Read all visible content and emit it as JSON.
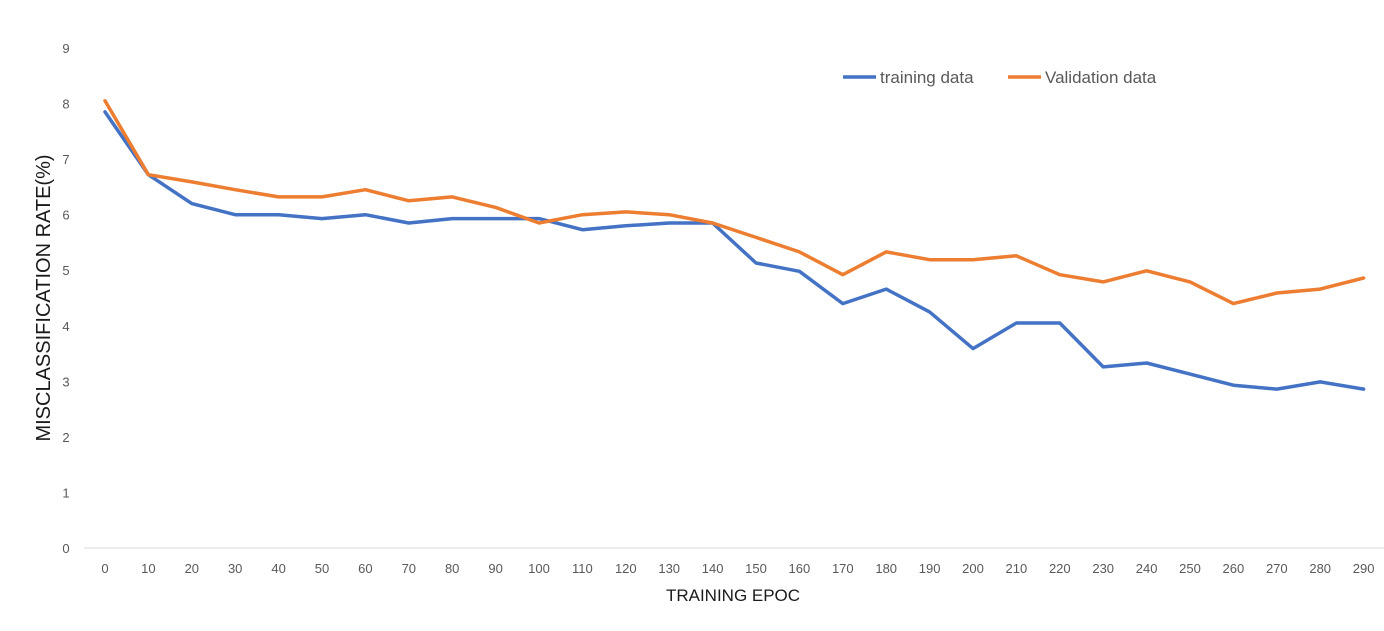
{
  "chart_data": {
    "type": "line",
    "title": "",
    "xlabel": "TRAINING EPOC",
    "ylabel": "MISCLASSIFICATION RATE(%)",
    "ylim": [
      0,
      9
    ],
    "y_ticks": [
      "0",
      "1",
      "2",
      "3",
      "4",
      "5",
      "6",
      "7",
      "8",
      "9"
    ],
    "grid": false,
    "legend_position": "top-right",
    "categories": [
      "0",
      "10",
      "20",
      "30",
      "40",
      "50",
      "60",
      "70",
      "80",
      "90",
      "100",
      "110",
      "120",
      "130",
      "140",
      "150",
      "160",
      "170",
      "180",
      "190",
      "200",
      "210",
      "220",
      "230",
      "240",
      "250",
      "260",
      "270",
      "280",
      "290"
    ],
    "series": [
      {
        "name": "training data",
        "color": "#4472C4",
        "values": [
          7.85,
          6.72,
          6.2,
          6.0,
          6.0,
          5.93,
          6.0,
          5.85,
          5.93,
          5.93,
          5.93,
          5.73,
          5.8,
          5.85,
          5.85,
          5.13,
          4.98,
          4.4,
          4.66,
          4.25,
          3.59,
          4.05,
          4.05,
          3.26,
          3.33,
          3.13,
          2.93,
          2.86,
          2.99,
          2.86
        ]
      },
      {
        "name": "Validation data",
        "color": "#ED7D31",
        "values": [
          8.05,
          6.72,
          6.59,
          6.45,
          6.32,
          6.32,
          6.45,
          6.25,
          6.32,
          6.13,
          5.85,
          6.0,
          6.05,
          6.0,
          5.85,
          5.59,
          5.33,
          4.92,
          5.33,
          5.19,
          5.19,
          5.26,
          4.92,
          4.79,
          4.99,
          4.79,
          4.4,
          4.59,
          4.66,
          4.86
        ]
      }
    ]
  }
}
